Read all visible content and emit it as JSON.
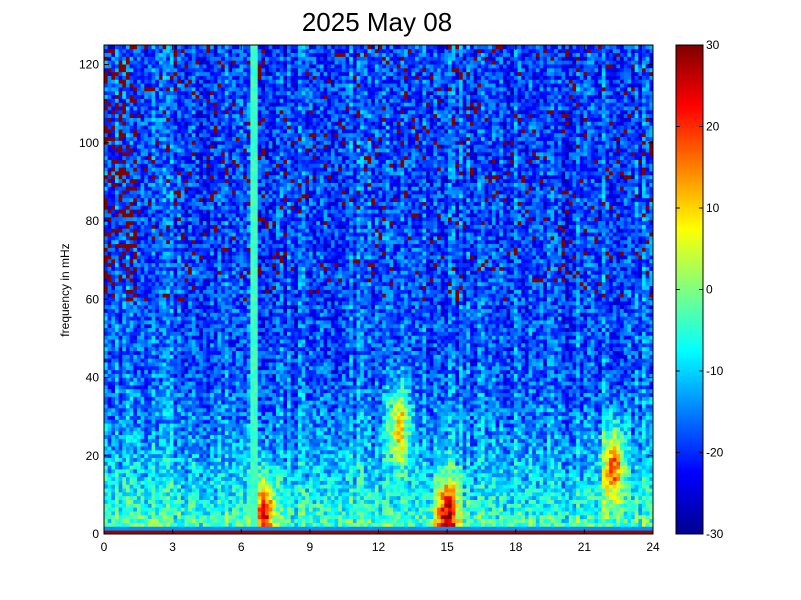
{
  "chart_data": {
    "type": "heatmap",
    "title": "2025 May 08",
    "xlabel": "",
    "ylabel": "frequency in mHz",
    "xlim": [
      0,
      24
    ],
    "ylim": [
      0,
      125
    ],
    "x_ticks": [
      "0",
      "3",
      "6",
      "9",
      "12",
      "15",
      "18",
      "21",
      "24"
    ],
    "y_ticks": [
      "0",
      "20",
      "40",
      "60",
      "80",
      "100",
      "120"
    ],
    "colorbar": {
      "range": [
        -30,
        30
      ],
      "ticks": [
        "30",
        "20",
        "10",
        "0",
        "-10",
        "-20",
        "-30"
      ],
      "colormap": "jet"
    },
    "features": {
      "vertical_line_x": 6.6,
      "low_freq_band_mHz": [
        0,
        40
      ],
      "hot_spots": [
        {
          "x": 7.0,
          "y": 5,
          "value": 25
        },
        {
          "x": 12.9,
          "y": 28,
          "value": 20
        },
        {
          "x": 15.0,
          "y": 5,
          "value": 28
        },
        {
          "x": 22.3,
          "y": 18,
          "value": 25
        }
      ]
    }
  }
}
